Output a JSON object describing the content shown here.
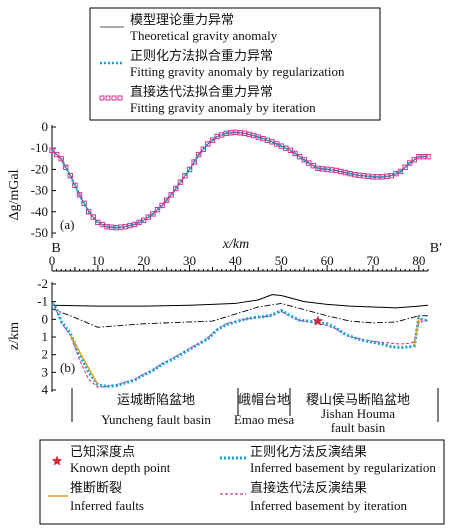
{
  "chart_data": [
    {
      "type": "line",
      "panel_label": "(a)",
      "ylabel": "Δg/mGal",
      "xlabel": "x/km",
      "xlim": [
        0,
        82
      ],
      "ylim": [
        -50,
        0
      ],
      "yticks": [
        0,
        -10,
        -20,
        -30,
        -40,
        -50
      ],
      "xticks": [
        0,
        10,
        20,
        30,
        40,
        50,
        60,
        70,
        80
      ],
      "endpoint_labels": {
        "left": "B",
        "right": "B′"
      },
      "legend": [
        {
          "cn": "模型理论重力异常",
          "en": "Theoretical gravity anomaly",
          "color": "#555555",
          "style": "solid"
        },
        {
          "cn": "正则化方法拟合重力异常",
          "en": "Fitting gravity anomaly by regularization",
          "color": "#1aa3d6",
          "style": "dotted"
        },
        {
          "cn": "直接迭代法拟合重力异常",
          "en": "Fitting gravity anomaly by iteration",
          "color": "#d0358f",
          "style": "square-markers"
        }
      ],
      "series": [
        {
          "name": "Theoretical gravity anomaly",
          "x": [
            0,
            2,
            4,
            6,
            8,
            10,
            12,
            14,
            16,
            18,
            20,
            22,
            24,
            26,
            28,
            30,
            32,
            34,
            36,
            38,
            40,
            42,
            44,
            46,
            48,
            50,
            52,
            54,
            56,
            58,
            60,
            62,
            64,
            66,
            68,
            70,
            72,
            74,
            76,
            78,
            80,
            82
          ],
          "y": [
            -11,
            -15,
            -23,
            -32,
            -40,
            -45,
            -47,
            -47.5,
            -47,
            -46,
            -44,
            -41,
            -37,
            -32,
            -26,
            -20,
            -13,
            -8,
            -4.5,
            -3,
            -2.5,
            -3,
            -4,
            -5.5,
            -7,
            -9,
            -11,
            -14,
            -17,
            -19.5,
            -20,
            -20.5,
            -21.5,
            -22.5,
            -23,
            -23.5,
            -23.5,
            -23,
            -21,
            -17,
            -14,
            -14
          ]
        },
        {
          "name": "Fitting gravity anomaly by regularization",
          "x": [
            0,
            2,
            4,
            6,
            8,
            10,
            12,
            14,
            16,
            18,
            20,
            22,
            24,
            26,
            28,
            30,
            32,
            34,
            36,
            38,
            40,
            42,
            44,
            46,
            48,
            50,
            52,
            54,
            56,
            58,
            60,
            62,
            64,
            66,
            68,
            70,
            72,
            74,
            76,
            78,
            80,
            82
          ],
          "y": [
            -11,
            -15,
            -23,
            -32,
            -40,
            -45,
            -47,
            -47.5,
            -47,
            -46,
            -44,
            -41,
            -37,
            -32,
            -26,
            -20,
            -13,
            -8,
            -4.5,
            -3,
            -2.5,
            -3,
            -4,
            -5.5,
            -7,
            -9,
            -11,
            -14,
            -17,
            -19.5,
            -20,
            -20.5,
            -21.5,
            -22.5,
            -23,
            -23.5,
            -23.5,
            -23,
            -21,
            -17,
            -14,
            -14
          ]
        },
        {
          "name": "Fitting gravity anomaly by iteration",
          "x": [
            0,
            2,
            4,
            6,
            8,
            10,
            12,
            14,
            16,
            18,
            20,
            22,
            24,
            26,
            28,
            30,
            32,
            34,
            36,
            38,
            40,
            42,
            44,
            46,
            48,
            50,
            52,
            54,
            56,
            58,
            60,
            62,
            64,
            66,
            68,
            70,
            72,
            74,
            76,
            78,
            80,
            82
          ],
          "y": [
            -11,
            -15,
            -23,
            -32,
            -40,
            -45,
            -47,
            -47.5,
            -47,
            -46,
            -44,
            -41,
            -37,
            -32,
            -26,
            -20,
            -13,
            -8,
            -4.5,
            -3,
            -2.5,
            -3,
            -4,
            -5.5,
            -7,
            -9,
            -11,
            -14,
            -17,
            -19.5,
            -20,
            -20.5,
            -21.5,
            -22.5,
            -23,
            -23.5,
            -23.5,
            -23,
            -21,
            -17,
            -14,
            -14
          ]
        }
      ]
    },
    {
      "type": "line",
      "panel_label": "(b)",
      "ylabel": "z/km",
      "xlim": [
        0,
        82
      ],
      "ylim": [
        -2,
        4
      ],
      "yticks": [
        -2,
        -1,
        0,
        1,
        2,
        3,
        4
      ],
      "xticks": [
        0,
        10,
        20,
        30,
        40,
        50,
        60,
        70,
        80
      ],
      "series": [
        {
          "name": "Topography",
          "x": [
            0,
            10,
            20,
            30,
            35,
            40,
            45,
            48,
            50,
            55,
            60,
            65,
            70,
            75,
            80,
            82
          ],
          "y": [
            -0.8,
            -0.75,
            -0.75,
            -0.8,
            -0.85,
            -0.9,
            -1.1,
            -1.4,
            -1.35,
            -1.0,
            -0.85,
            -0.75,
            -0.7,
            -0.65,
            -0.75,
            -0.8
          ]
        },
        {
          "name": "Reference surface",
          "x": [
            0,
            5,
            10,
            15,
            20,
            25,
            30,
            35,
            40,
            45,
            50,
            55,
            60,
            65,
            70,
            75,
            80,
            82
          ],
          "y": [
            -0.6,
            -0.1,
            0.45,
            0.35,
            0.25,
            0.2,
            0.15,
            0.1,
            -0.3,
            -0.7,
            -0.9,
            -0.55,
            -0.2,
            0.1,
            0.2,
            0.15,
            -0.2,
            -0.2
          ]
        },
        {
          "name": "Inferred basement by regularization",
          "x": [
            0,
            1,
            2,
            4,
            6,
            8,
            10,
            12,
            14,
            16,
            18,
            20,
            22,
            24,
            26,
            28,
            30,
            32,
            34,
            36,
            38,
            40,
            42,
            44,
            46,
            48,
            50,
            52,
            54,
            56,
            58,
            60,
            62,
            64,
            66,
            68,
            70,
            72,
            74,
            76,
            78,
            79,
            80,
            81,
            82
          ],
          "y": [
            -0.9,
            -0.6,
            0.1,
            0.8,
            2.0,
            3.0,
            3.7,
            3.8,
            3.75,
            3.6,
            3.45,
            3.15,
            2.9,
            2.55,
            2.3,
            2.0,
            1.7,
            1.4,
            1.1,
            0.6,
            0.3,
            0.15,
            0.0,
            -0.1,
            -0.15,
            -0.25,
            -0.5,
            -0.2,
            0.05,
            0.1,
            0.2,
            0.25,
            0.5,
            0.85,
            1.05,
            1.2,
            1.3,
            1.4,
            1.55,
            1.6,
            1.55,
            1.5,
            -0.1,
            0.05,
            0.05
          ]
        },
        {
          "name": "Inferred basement by iteration",
          "x": [
            0,
            1,
            2,
            4,
            6,
            8,
            10,
            12,
            14,
            16,
            18,
            20,
            22,
            24,
            26,
            28,
            30,
            32,
            34,
            36,
            38,
            40,
            42,
            44,
            46,
            48,
            50,
            52,
            54,
            56,
            58,
            60,
            62,
            64,
            66,
            68,
            70,
            72,
            74,
            76,
            78,
            79,
            80,
            81,
            82
          ],
          "y": [
            -0.9,
            -0.5,
            0.2,
            0.9,
            2.3,
            3.4,
            3.85,
            3.8,
            3.7,
            3.55,
            3.4,
            3.1,
            2.85,
            2.5,
            2.25,
            1.95,
            1.65,
            1.35,
            1.05,
            0.55,
            0.25,
            0.1,
            0.0,
            -0.1,
            -0.15,
            -0.2,
            -0.45,
            -0.15,
            0.05,
            0.15,
            0.25,
            0.35,
            0.55,
            0.9,
            1.05,
            1.15,
            1.25,
            1.3,
            1.35,
            1.4,
            1.35,
            1.3,
            0.2,
            0.1,
            0.05
          ]
        },
        {
          "name": "Inferred faults",
          "segments": [
            [
              [
                4,
                0.9
              ],
              [
                10,
                3.7
              ]
            ],
            [
              [
                79,
                1.5
              ],
              [
                80,
                -0.1
              ]
            ]
          ]
        }
      ],
      "known_depth_point": {
        "x": 58,
        "y": 0.1
      },
      "regions": [
        {
          "cn": "运城断陷盆地",
          "en": "Yuncheng fault basin"
        },
        {
          "cn": "峨帽台地",
          "en": "Emao mesa"
        },
        {
          "cn": "稷山侯马断陷盆地",
          "en": "Jishan Houma fault basin"
        }
      ],
      "region_bounds_km": [
        5,
        46,
        54,
        82
      ]
    }
  ],
  "bottom_legend": [
    {
      "cn": "已知深度点",
      "en": "Known depth point",
      "color": "#d42a3a",
      "style": "star"
    },
    {
      "cn": "正则化方法反演结果",
      "en": "Inferred basement by regularization",
      "color": "#1aa3d6",
      "style": "dotted"
    },
    {
      "cn": "推断断裂",
      "en": "Inferred faults",
      "color": "#e0a020",
      "style": "solid"
    },
    {
      "cn": "直接迭代法反演结果",
      "en": "Inferred basement by iteration",
      "color": "#d0358f",
      "style": "dashed"
    }
  ]
}
